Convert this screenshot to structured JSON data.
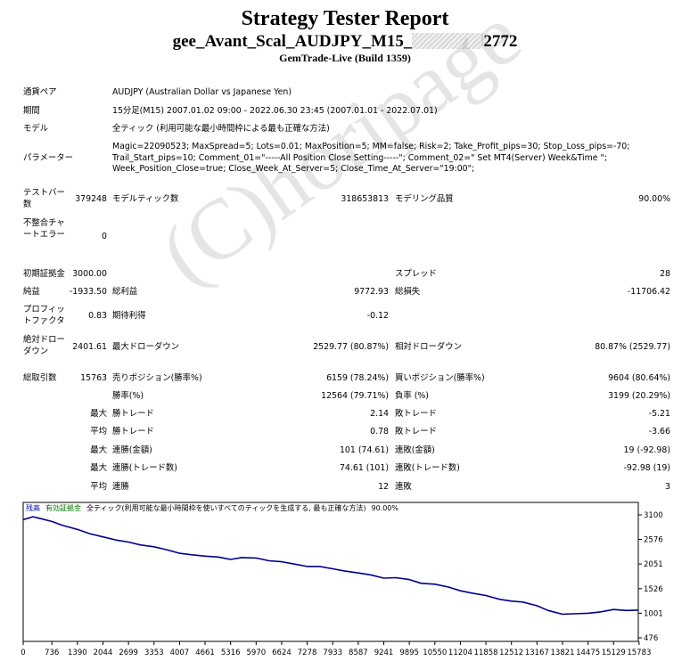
{
  "header": {
    "title": "Strategy Tester Report",
    "expert_prefix": "gee_Avant_Scal_AUDJPY_M15_",
    "expert_suffix": "2772",
    "server": "GemTrade-Live (Build 1359)"
  },
  "info": {
    "symbol_label": "通貨ペア",
    "symbol": "AUDJPY (Australian Dollar vs Japanese Yen)",
    "period_label": "期間",
    "period": "15分足(M15) 2007.01.02 09:00 - 2022.06.30 23:45 (2007.01.01 - 2022.07.01)",
    "model_label": "モデル",
    "model": "全ティック (利用可能な最小時間枠による最も正確な方法)",
    "params_label": "パラメーター",
    "params": "Magic=22090523; MaxSpread=5; Lots=0.01; MaxPosition=5; MM=false; Risk=2; Take_Profit_pips=30; Stop_Loss_pips=-70; Trail_Start_pips=10; Comment_01=\"-----All Position Close Setting-----\"; Comment_02=\" Set MT4(Server) Week&Time \"; Week_Position_Close=true; Close_Week_At_Server=5; Close_Time_At_Server=\"19:00\";"
  },
  "stats": {
    "bars_label": "テストバー数",
    "bars": "379248",
    "ticks_label": "モデルティック数",
    "ticks": "318653813",
    "quality_label": "モデリング品質",
    "quality": "90.00%",
    "mismatch_label": "不整合チャートエラー",
    "mismatch": "0",
    "deposit_label": "初期証拠金",
    "deposit": "3000.00",
    "spread_label": "スプレッド",
    "spread": "28",
    "net_label": "純益",
    "net": "-1933.50",
    "gross_profit_label": "総利益",
    "gross_profit": "9772.93",
    "gross_loss_label": "総損失",
    "gross_loss": "-11706.42",
    "pf_label": "プロフィットファクタ",
    "pf": "0.83",
    "expected_label": "期待利得",
    "expected": "-0.12",
    "abs_dd_label": "絶対ドローダウン",
    "abs_dd": "2401.61",
    "max_dd_label": "最大ドローダウン",
    "max_dd": "2529.77 (80.87%)",
    "rel_dd_label": "相対ドローダウン",
    "rel_dd": "80.87% (2529.77)",
    "trades_label": "総取引数",
    "trades": "15763",
    "short_label": "売りポジション(勝率%)",
    "short": "6159 (78.24%)",
    "long_label": "買いポジション(勝率%)",
    "long": "9604 (80.64%)",
    "win_label": "勝率(%)",
    "win": "12564 (79.71%)",
    "loss_label": "負率 (%)",
    "loss": "3199 (20.29%)",
    "largest": "最大",
    "average": "平均",
    "maximum": "最大",
    "maximal": "最大",
    "avg2": "平均",
    "largest_win_label": "勝トレード",
    "largest_win": "2.14",
    "largest_loss_label": "敗トレード",
    "largest_loss": "-5.21",
    "avg_win_label": "勝トレード",
    "avg_win": "0.78",
    "avg_loss_label": "敗トレード",
    "avg_loss": "-3.66",
    "max_cons_win_label": "連勝(金額)",
    "max_cons_win": "101 (74.61)",
    "max_cons_loss_label": "連敗(金額)",
    "max_cons_loss": "19 (-92.98)",
    "max_cons_profit_label": "連勝(トレード数)",
    "max_cons_profit": "74.61 (101)",
    "max_cons_lossamt_label": "連敗(トレード数)",
    "max_cons_lossamt": "-92.98 (19)",
    "avg_cons_win_label": "連勝",
    "avg_cons_win": "12",
    "avg_cons_loss_label": "連敗",
    "avg_cons_loss": "3"
  },
  "watermark": "(C)horipage",
  "chart_data": {
    "type": "line",
    "legend": [
      "残高",
      "有効証拠金",
      "全ティック(利用可能な最小時間枠を使いすべてのティックを生成する, 最も正確な方法)",
      "90.00%"
    ],
    "legend_colors": [
      "#0000aa",
      "#007700",
      "#000000",
      "#000000"
    ],
    "xticks": [
      "0",
      "736",
      "1390",
      "2044",
      "2699",
      "3353",
      "4007",
      "4661",
      "5316",
      "5970",
      "6624",
      "7278",
      "7933",
      "8587",
      "9241",
      "9895",
      "10550",
      "11204",
      "11858",
      "12512",
      "13167",
      "13821",
      "14475",
      "15129",
      "15783"
    ],
    "yticks": [
      "3100",
      "2576",
      "2051",
      "1526",
      "1001",
      "476"
    ],
    "xlim": [
      0,
      15763
    ],
    "ylim": [
      476,
      3100
    ],
    "x": [
      0,
      250,
      450,
      736,
      1000,
      1390,
      1700,
      2044,
      2400,
      2699,
      3000,
      3353,
      3700,
      4007,
      4300,
      4661,
      5000,
      5316,
      5600,
      5970,
      6300,
      6624,
      6950,
      7278,
      7600,
      7933,
      8250,
      8587,
      8900,
      9241,
      9550,
      9895,
      10200,
      10550,
      10900,
      11204,
      11500,
      11858,
      12200,
      12512,
      12800,
      13167,
      13450,
      13821,
      14100,
      14475,
      14800,
      15129,
      15450,
      15763
    ],
    "y": [
      3000,
      3060,
      3020,
      2960,
      2880,
      2790,
      2700,
      2630,
      2560,
      2520,
      2460,
      2420,
      2350,
      2280,
      2250,
      2220,
      2200,
      2150,
      2190,
      2180,
      2120,
      2100,
      2050,
      2000,
      2000,
      1950,
      1900,
      1860,
      1820,
      1750,
      1760,
      1720,
      1640,
      1620,
      1560,
      1480,
      1430,
      1380,
      1300,
      1260,
      1240,
      1160,
      1060,
      980,
      990,
      1000,
      1030,
      1080,
      1060,
      1068
    ],
    "line_color": "#00008b"
  }
}
